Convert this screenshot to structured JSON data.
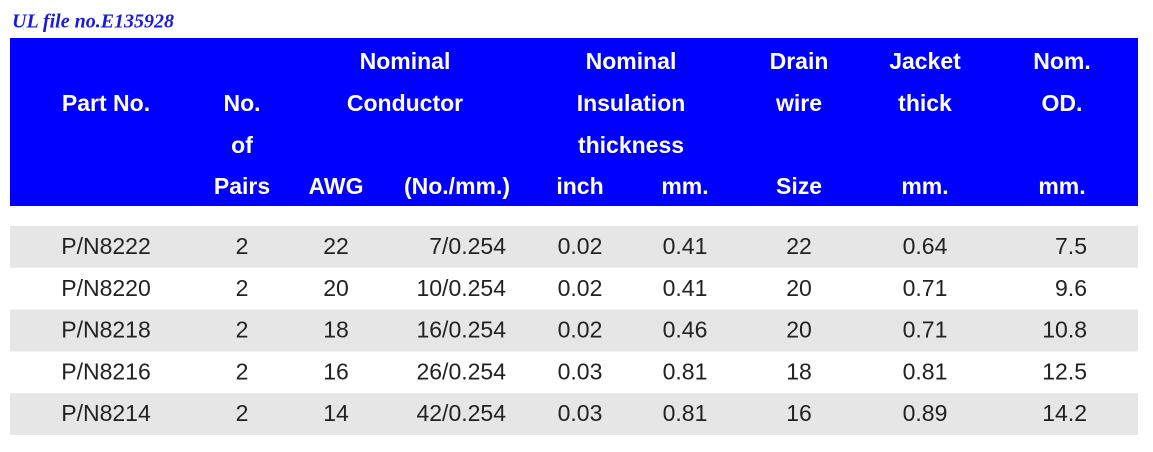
{
  "title": "UL file no.E135928",
  "table": {
    "header": {
      "part_no": "Part No.",
      "pairs": [
        "No.",
        "of",
        "Pairs"
      ],
      "conductor": [
        "Nominal",
        "Conductor"
      ],
      "awg": "AWG",
      "strand": "(No./mm.)",
      "insulation": [
        "Nominal",
        "Insulation",
        "thickness"
      ],
      "inch": "inch",
      "mm": "mm.",
      "drain": [
        "Drain",
        "wire",
        "Size"
      ],
      "jacket": [
        "Jacket",
        "thick",
        "mm."
      ],
      "od": [
        "Nom.",
        "OD.",
        "mm."
      ]
    },
    "rows": [
      [
        "P/N8222",
        "2",
        "22",
        "7/0.254",
        "0.02",
        "0.41",
        "22",
        "0.64",
        "7.5"
      ],
      [
        "P/N8220",
        "2",
        "20",
        "10/0.254",
        "0.02",
        "0.41",
        "20",
        "0.71",
        "9.6"
      ],
      [
        "P/N8218",
        "2",
        "18",
        "16/0.254",
        "0.02",
        "0.46",
        "20",
        "0.71",
        "10.8"
      ],
      [
        "P/N8216",
        "2",
        "16",
        "26/0.254",
        "0.03",
        "0.81",
        "18",
        "0.81",
        "12.5"
      ],
      [
        "P/N8214",
        "2",
        "14",
        "42/0.254",
        "0.03",
        "0.81",
        "16",
        "0.89",
        "14.2"
      ]
    ]
  }
}
